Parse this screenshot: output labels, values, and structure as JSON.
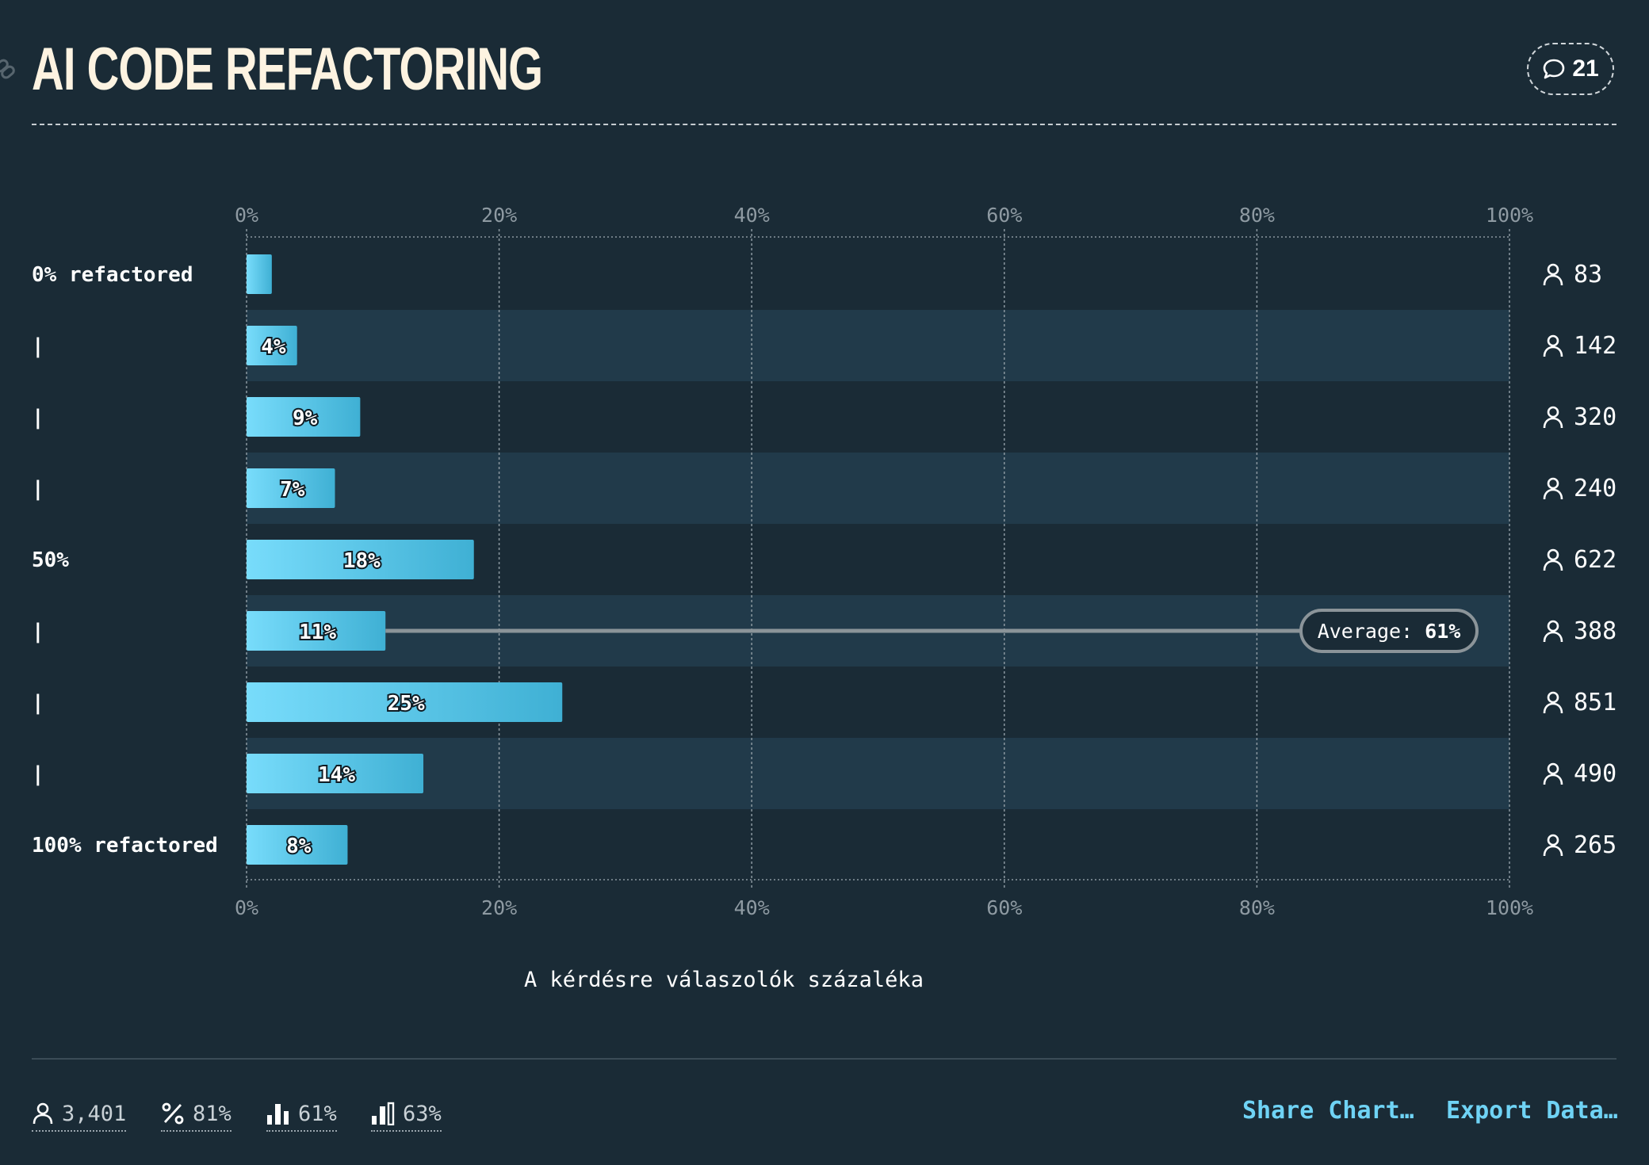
{
  "header": {
    "title": "AI CODE REFACTORING",
    "comment_count": "21"
  },
  "chart_data": {
    "type": "bar",
    "orientation": "horizontal",
    "categories": [
      "0% refactored",
      "|",
      "|",
      "|",
      "50%",
      "|",
      "|",
      "|",
      "100% refactored"
    ],
    "values": [
      2,
      4,
      9,
      7,
      18,
      11,
      25,
      14,
      8
    ],
    "value_labels": [
      "",
      "4%",
      "9%",
      "7%",
      "18%",
      "11%",
      "25%",
      "14%",
      "8%"
    ],
    "respondents": [
      "83",
      "142",
      "320",
      "240",
      "622",
      "388",
      "851",
      "490",
      "265"
    ],
    "xlim": [
      0,
      100
    ],
    "x_ticks": [
      "0%",
      "20%",
      "40%",
      "60%",
      "80%",
      "100%"
    ],
    "xlabel": "A kérdésre válaszolók százaléka",
    "average": {
      "label": "Average:",
      "value": "61%",
      "category_index": 5
    },
    "grid": true,
    "colors": {
      "bar_start": "#78dcfb",
      "bar_end": "#3fb0d4",
      "stripe": "#213a4a",
      "background": "#1a2b36"
    }
  },
  "footer": {
    "stats": [
      {
        "icon": "person-icon",
        "value": "3,401"
      },
      {
        "icon": "percent-icon",
        "value": "81%"
      },
      {
        "icon": "bar-chart-icon",
        "value": "61%"
      },
      {
        "icon": "bar-chart-alt-icon",
        "value": "63%"
      }
    ],
    "share_label": "Share Chart…",
    "export_label": "Export Data…"
  }
}
